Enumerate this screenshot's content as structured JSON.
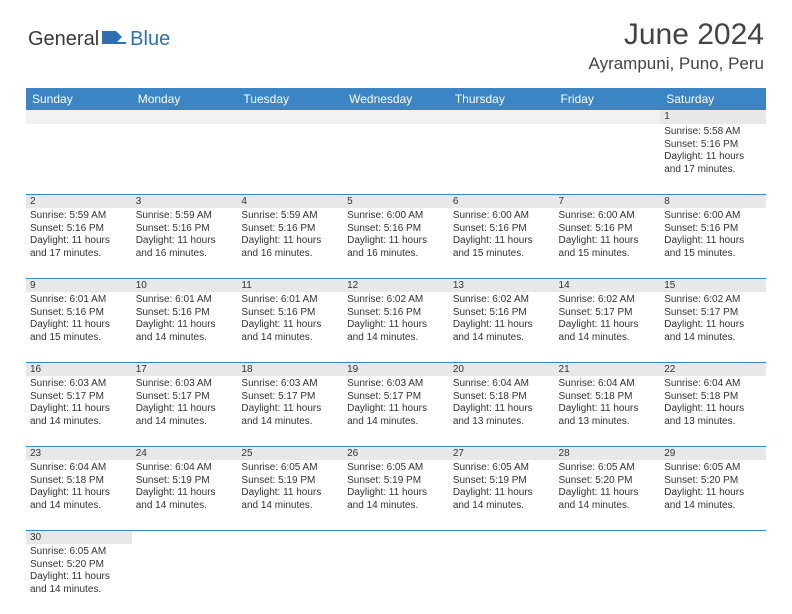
{
  "brand": {
    "part1": "General",
    "part2": "Blue",
    "icon_color": "#2f6fb0"
  },
  "title": "June 2024",
  "location": "Ayrampuni, Puno, Peru",
  "colors": {
    "header_bg": "#3b85c5",
    "header_text": "#ffffff",
    "daynum_bg": "#e8e8e8",
    "cell_border": "#3b85c5",
    "body_text": "#333333"
  },
  "weekdays": [
    "Sunday",
    "Monday",
    "Tuesday",
    "Wednesday",
    "Thursday",
    "Friday",
    "Saturday"
  ],
  "weeks": [
    {
      "daynums": [
        "",
        "",
        "",
        "",
        "",
        "",
        "1"
      ],
      "cells": [
        null,
        null,
        null,
        null,
        null,
        null,
        {
          "sunrise": "5:58 AM",
          "sunset": "5:16 PM",
          "daylight": "11 hours and 17 minutes."
        }
      ]
    },
    {
      "daynums": [
        "2",
        "3",
        "4",
        "5",
        "6",
        "7",
        "8"
      ],
      "cells": [
        {
          "sunrise": "5:59 AM",
          "sunset": "5:16 PM",
          "daylight": "11 hours and 17 minutes."
        },
        {
          "sunrise": "5:59 AM",
          "sunset": "5:16 PM",
          "daylight": "11 hours and 16 minutes."
        },
        {
          "sunrise": "5:59 AM",
          "sunset": "5:16 PM",
          "daylight": "11 hours and 16 minutes."
        },
        {
          "sunrise": "6:00 AM",
          "sunset": "5:16 PM",
          "daylight": "11 hours and 16 minutes."
        },
        {
          "sunrise": "6:00 AM",
          "sunset": "5:16 PM",
          "daylight": "11 hours and 15 minutes."
        },
        {
          "sunrise": "6:00 AM",
          "sunset": "5:16 PM",
          "daylight": "11 hours and 15 minutes."
        },
        {
          "sunrise": "6:00 AM",
          "sunset": "5:16 PM",
          "daylight": "11 hours and 15 minutes."
        }
      ]
    },
    {
      "daynums": [
        "9",
        "10",
        "11",
        "12",
        "13",
        "14",
        "15"
      ],
      "cells": [
        {
          "sunrise": "6:01 AM",
          "sunset": "5:16 PM",
          "daylight": "11 hours and 15 minutes."
        },
        {
          "sunrise": "6:01 AM",
          "sunset": "5:16 PM",
          "daylight": "11 hours and 14 minutes."
        },
        {
          "sunrise": "6:01 AM",
          "sunset": "5:16 PM",
          "daylight": "11 hours and 14 minutes."
        },
        {
          "sunrise": "6:02 AM",
          "sunset": "5:16 PM",
          "daylight": "11 hours and 14 minutes."
        },
        {
          "sunrise": "6:02 AM",
          "sunset": "5:16 PM",
          "daylight": "11 hours and 14 minutes."
        },
        {
          "sunrise": "6:02 AM",
          "sunset": "5:17 PM",
          "daylight": "11 hours and 14 minutes."
        },
        {
          "sunrise": "6:02 AM",
          "sunset": "5:17 PM",
          "daylight": "11 hours and 14 minutes."
        }
      ]
    },
    {
      "daynums": [
        "16",
        "17",
        "18",
        "19",
        "20",
        "21",
        "22"
      ],
      "cells": [
        {
          "sunrise": "6:03 AM",
          "sunset": "5:17 PM",
          "daylight": "11 hours and 14 minutes."
        },
        {
          "sunrise": "6:03 AM",
          "sunset": "5:17 PM",
          "daylight": "11 hours and 14 minutes."
        },
        {
          "sunrise": "6:03 AM",
          "sunset": "5:17 PM",
          "daylight": "11 hours and 14 minutes."
        },
        {
          "sunrise": "6:03 AM",
          "sunset": "5:17 PM",
          "daylight": "11 hours and 14 minutes."
        },
        {
          "sunrise": "6:04 AM",
          "sunset": "5:18 PM",
          "daylight": "11 hours and 13 minutes."
        },
        {
          "sunrise": "6:04 AM",
          "sunset": "5:18 PM",
          "daylight": "11 hours and 13 minutes."
        },
        {
          "sunrise": "6:04 AM",
          "sunset": "5:18 PM",
          "daylight": "11 hours and 13 minutes."
        }
      ]
    },
    {
      "daynums": [
        "23",
        "24",
        "25",
        "26",
        "27",
        "28",
        "29"
      ],
      "cells": [
        {
          "sunrise": "6:04 AM",
          "sunset": "5:18 PM",
          "daylight": "11 hours and 14 minutes."
        },
        {
          "sunrise": "6:04 AM",
          "sunset": "5:19 PM",
          "daylight": "11 hours and 14 minutes."
        },
        {
          "sunrise": "6:05 AM",
          "sunset": "5:19 PM",
          "daylight": "11 hours and 14 minutes."
        },
        {
          "sunrise": "6:05 AM",
          "sunset": "5:19 PM",
          "daylight": "11 hours and 14 minutes."
        },
        {
          "sunrise": "6:05 AM",
          "sunset": "5:19 PM",
          "daylight": "11 hours and 14 minutes."
        },
        {
          "sunrise": "6:05 AM",
          "sunset": "5:20 PM",
          "daylight": "11 hours and 14 minutes."
        },
        {
          "sunrise": "6:05 AM",
          "sunset": "5:20 PM",
          "daylight": "11 hours and 14 minutes."
        }
      ]
    },
    {
      "daynums": [
        "30",
        "",
        "",
        "",
        "",
        "",
        ""
      ],
      "cells": [
        {
          "sunrise": "6:05 AM",
          "sunset": "5:20 PM",
          "daylight": "11 hours and 14 minutes."
        },
        null,
        null,
        null,
        null,
        null,
        null
      ]
    }
  ],
  "labels": {
    "sunrise": "Sunrise: ",
    "sunset": "Sunset: ",
    "daylight": "Daylight: "
  }
}
